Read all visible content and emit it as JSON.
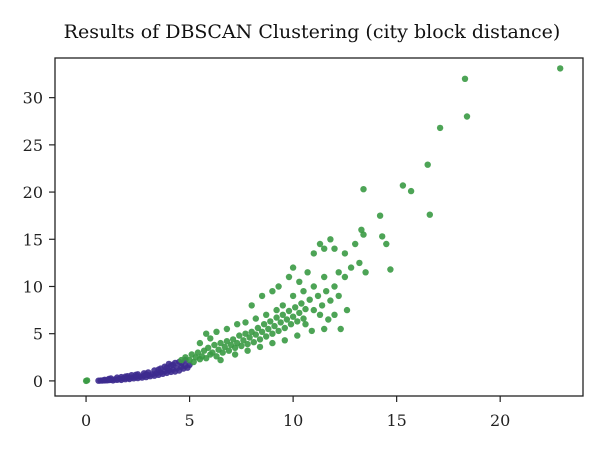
{
  "chart_data": {
    "type": "scatter",
    "title": "Results of DBSCAN Clustering (city block distance)",
    "xlabel": "",
    "ylabel": "",
    "xlim": [
      -1.5,
      24
    ],
    "ylim": [
      -1.6,
      34.2
    ],
    "x_ticks": [
      0,
      5,
      10,
      15,
      20
    ],
    "y_ticks": [
      0,
      5,
      10,
      15,
      20,
      25,
      30
    ],
    "grid": false,
    "legend": "none",
    "colors": {
      "cluster_1": "#3d2b8f",
      "cluster_2": "#3a9a44"
    },
    "series": [
      {
        "id": "cluster_1",
        "color": "#3d2b8f",
        "points": [
          [
            0.6,
            0.02
          ],
          [
            0.7,
            0.03
          ],
          [
            0.8,
            0.04
          ],
          [
            0.9,
            0.05
          ],
          [
            1.0,
            0.06
          ],
          [
            1.1,
            0.08
          ],
          [
            1.2,
            0.1
          ],
          [
            1.3,
            0.05
          ],
          [
            1.4,
            0.15
          ],
          [
            1.5,
            0.12
          ],
          [
            1.6,
            0.2
          ],
          [
            1.7,
            0.1
          ],
          [
            1.8,
            0.25
          ],
          [
            1.9,
            0.18
          ],
          [
            2.0,
            0.3
          ],
          [
            2.1,
            0.2
          ],
          [
            2.2,
            0.35
          ],
          [
            2.3,
            0.28
          ],
          [
            2.4,
            0.4
          ],
          [
            2.5,
            0.3
          ],
          [
            2.6,
            0.45
          ],
          [
            2.7,
            0.35
          ],
          [
            2.8,
            0.55
          ],
          [
            2.9,
            0.4
          ],
          [
            3.0,
            0.6
          ],
          [
            3.1,
            0.5
          ],
          [
            3.2,
            0.7
          ],
          [
            3.3,
            0.55
          ],
          [
            3.4,
            0.8
          ],
          [
            3.5,
            0.65
          ],
          [
            3.6,
            0.9
          ],
          [
            3.7,
            0.75
          ],
          [
            3.8,
            1.0
          ],
          [
            3.9,
            0.85
          ],
          [
            4.0,
            1.1
          ],
          [
            4.1,
            0.95
          ],
          [
            4.2,
            1.2
          ],
          [
            4.3,
            1.0
          ],
          [
            4.4,
            1.35
          ],
          [
            4.5,
            1.1
          ],
          [
            4.6,
            1.5
          ],
          [
            4.7,
            1.3
          ],
          [
            4.8,
            1.6
          ],
          [
            4.9,
            1.4
          ],
          [
            5.0,
            1.7
          ],
          [
            3.5,
            1.2
          ],
          [
            3.8,
            1.5
          ],
          [
            4.0,
            1.8
          ],
          [
            4.2,
            1.7
          ],
          [
            4.5,
            2.0
          ],
          [
            2.5,
            0.7
          ],
          [
            3.0,
            0.9
          ],
          [
            2.0,
            0.5
          ],
          [
            1.5,
            0.35
          ],
          [
            1.2,
            0.25
          ],
          [
            4.8,
            2.2
          ],
          [
            4.3,
            1.9
          ],
          [
            3.6,
            1.3
          ],
          [
            2.8,
            0.8
          ],
          [
            2.2,
            0.6
          ],
          [
            1.9,
            0.45
          ],
          [
            3.3,
            1.1
          ],
          [
            4.1,
            1.6
          ],
          [
            4.6,
            1.9
          ],
          [
            0.9,
            0.12
          ],
          [
            1.1,
            0.2
          ],
          [
            1.7,
            0.4
          ],
          [
            2.4,
            0.65
          ],
          [
            2.9,
            0.7
          ],
          [
            3.9,
            1.4
          ]
        ]
      },
      {
        "id": "cluster_2",
        "color": "#3a9a44",
        "points": [
          [
            0.0,
            0.0
          ],
          [
            0.05,
            0.05
          ],
          [
            4.6,
            2.2
          ],
          [
            4.8,
            2.5
          ],
          [
            5.0,
            2.2
          ],
          [
            5.1,
            2.8
          ],
          [
            5.2,
            2.0
          ],
          [
            5.3,
            2.5
          ],
          [
            5.4,
            3.0
          ],
          [
            5.5,
            2.3
          ],
          [
            5.6,
            2.6
          ],
          [
            5.7,
            3.2
          ],
          [
            5.8,
            2.4
          ],
          [
            5.9,
            3.5
          ],
          [
            6.0,
            2.8
          ],
          [
            6.1,
            3.0
          ],
          [
            6.2,
            3.8
          ],
          [
            6.3,
            2.6
          ],
          [
            6.4,
            3.3
          ],
          [
            6.5,
            4.0
          ],
          [
            6.6,
            3.0
          ],
          [
            6.7,
            3.6
          ],
          [
            6.8,
            4.2
          ],
          [
            6.9,
            3.2
          ],
          [
            7.0,
            3.8
          ],
          [
            7.1,
            4.4
          ],
          [
            7.2,
            3.5
          ],
          [
            7.3,
            4.0
          ],
          [
            7.4,
            4.8
          ],
          [
            7.5,
            3.7
          ],
          [
            7.6,
            4.3
          ],
          [
            7.7,
            5.0
          ],
          [
            7.8,
            3.9
          ],
          [
            7.9,
            4.6
          ],
          [
            8.0,
            5.2
          ],
          [
            8.1,
            4.1
          ],
          [
            8.2,
            4.9
          ],
          [
            8.3,
            5.6
          ],
          [
            8.4,
            4.4
          ],
          [
            8.5,
            5.2
          ],
          [
            8.6,
            6.0
          ],
          [
            8.7,
            4.7
          ],
          [
            8.8,
            5.5
          ],
          [
            8.9,
            6.3
          ],
          [
            9.0,
            5.0
          ],
          [
            9.1,
            5.8
          ],
          [
            9.2,
            6.7
          ],
          [
            9.3,
            5.3
          ],
          [
            9.4,
            6.2
          ],
          [
            9.5,
            7.0
          ],
          [
            9.6,
            5.6
          ],
          [
            9.7,
            6.5
          ],
          [
            9.8,
            7.4
          ],
          [
            9.9,
            6.0
          ],
          [
            10.0,
            6.8
          ],
          [
            10.1,
            7.8
          ],
          [
            10.2,
            6.3
          ],
          [
            10.3,
            7.2
          ],
          [
            10.4,
            8.2
          ],
          [
            10.5,
            6.6
          ],
          [
            10.6,
            7.6
          ],
          [
            10.8,
            8.6
          ],
          [
            11.0,
            7.5
          ],
          [
            11.2,
            9.0
          ],
          [
            11.4,
            8.0
          ],
          [
            11.6,
            9.5
          ],
          [
            11.8,
            8.5
          ],
          [
            12.0,
            10.0
          ],
          [
            12.2,
            9.0
          ],
          [
            12.5,
            11.0
          ],
          [
            8.0,
            8.0
          ],
          [
            8.5,
            9.0
          ],
          [
            9.0,
            9.5
          ],
          [
            9.3,
            10.0
          ],
          [
            9.8,
            11.0
          ],
          [
            10.0,
            12.0
          ],
          [
            10.3,
            10.5
          ],
          [
            10.7,
            11.5
          ],
          [
            11.3,
            14.5
          ],
          [
            11.0,
            13.5
          ],
          [
            11.5,
            14.0
          ],
          [
            11.8,
            15.0
          ],
          [
            12.0,
            14.0
          ],
          [
            12.5,
            13.5
          ],
          [
            13.0,
            14.5
          ],
          [
            13.2,
            12.5
          ],
          [
            13.4,
            15.5
          ],
          [
            12.2,
            11.5
          ],
          [
            12.8,
            12.0
          ],
          [
            13.5,
            11.5
          ],
          [
            13.3,
            16.0
          ],
          [
            14.2,
            17.5
          ],
          [
            14.3,
            15.3
          ],
          [
            14.5,
            14.5
          ],
          [
            14.7,
            11.8
          ],
          [
            15.3,
            20.7
          ],
          [
            15.7,
            20.1
          ],
          [
            16.5,
            22.9
          ],
          [
            16.6,
            17.6
          ],
          [
            13.4,
            20.3
          ],
          [
            17.1,
            26.8
          ],
          [
            18.4,
            28.0
          ],
          [
            18.3,
            32.0
          ],
          [
            22.9,
            33.1
          ],
          [
            6.5,
            2.2
          ],
          [
            7.2,
            2.8
          ],
          [
            7.8,
            3.2
          ],
          [
            8.4,
            3.6
          ],
          [
            9.0,
            4.0
          ],
          [
            9.6,
            4.3
          ],
          [
            10.2,
            4.8
          ],
          [
            10.9,
            5.3
          ],
          [
            11.5,
            5.5
          ],
          [
            12.0,
            7.0
          ],
          [
            12.3,
            5.5
          ],
          [
            12.6,
            7.5
          ],
          [
            11.7,
            6.5
          ],
          [
            11.3,
            7.0
          ],
          [
            10.6,
            6.0
          ],
          [
            6.0,
            4.5
          ],
          [
            5.5,
            4.0
          ],
          [
            5.8,
            5.0
          ],
          [
            6.3,
            5.2
          ],
          [
            6.8,
            5.5
          ],
          [
            7.3,
            6.0
          ],
          [
            7.7,
            6.2
          ],
          [
            8.2,
            6.6
          ],
          [
            8.7,
            7.0
          ],
          [
            9.2,
            7.5
          ],
          [
            9.5,
            8.0
          ],
          [
            10.0,
            9.0
          ],
          [
            10.5,
            9.5
          ],
          [
            11.0,
            10.0
          ],
          [
            11.5,
            11.0
          ]
        ]
      }
    ]
  }
}
